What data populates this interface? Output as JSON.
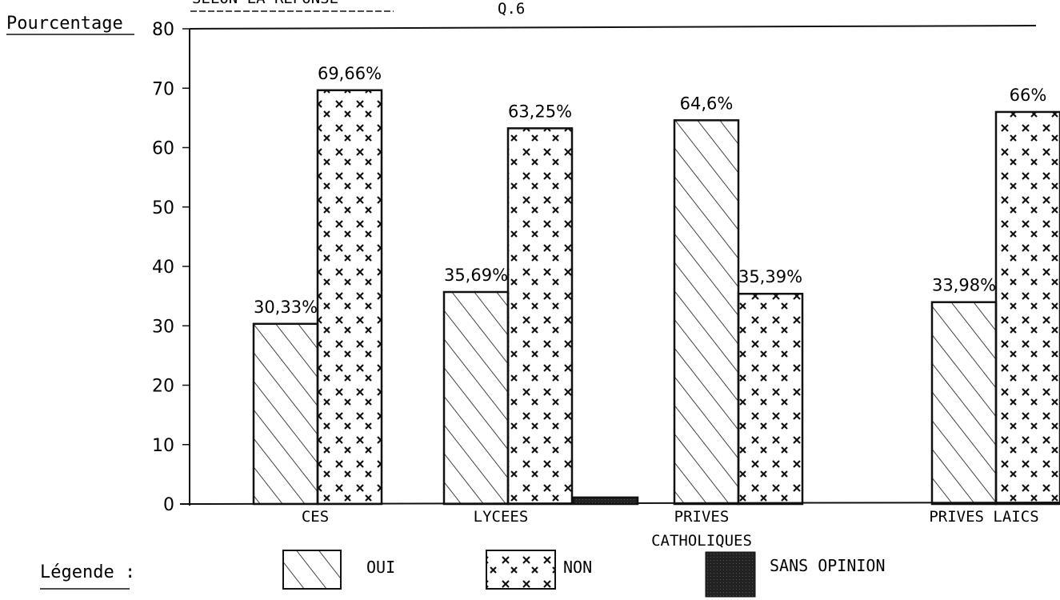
{
  "chart_data": {
    "type": "bar",
    "header_fragment": "SELON LA REPONSE",
    "question_label": "Q.6",
    "ylabel": "Pourcentage",
    "ylim": [
      0,
      80
    ],
    "y_ticks": [
      "0",
      "10",
      "20",
      "30",
      "40",
      "50",
      "60",
      "70",
      "80"
    ],
    "categories": [
      "CES",
      "LYCEES",
      "PRIVES\nCATHOLIQUES",
      "PRIVES LAICS"
    ],
    "series": [
      {
        "name": "OUI",
        "values": [
          30.33,
          35.69,
          64.6,
          33.98
        ],
        "labels": [
          "30,33%",
          "35,69%",
          "64,6%",
          "33,98%"
        ]
      },
      {
        "name": "NON",
        "values": [
          69.66,
          63.25,
          35.39,
          66
        ],
        "labels": [
          "69,66%",
          "63,25%",
          "35,39%",
          "66%"
        ]
      },
      {
        "name": "SANS OPINION",
        "values": [
          0,
          1.1,
          0,
          0
        ],
        "labels": [
          "",
          "",
          "",
          ""
        ]
      }
    ],
    "legend": {
      "title": "Légende :",
      "position": "bottom"
    },
    "colors": {
      "ink": "#111111",
      "background": "#ffffff"
    }
  }
}
